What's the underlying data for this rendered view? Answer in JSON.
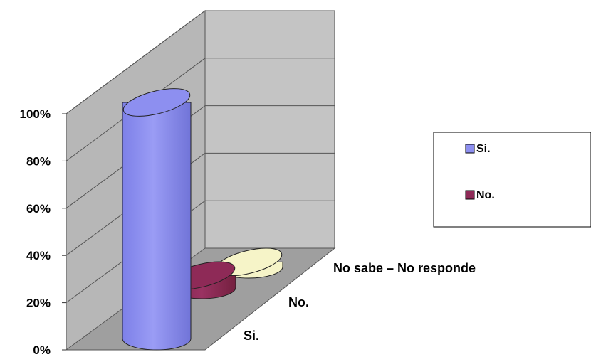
{
  "chart_data": {
    "type": "bar",
    "style": "3d-cylinder",
    "categories": [
      "Si.",
      "No.",
      "No sabe – No responde"
    ],
    "values": [
      100,
      5,
      2
    ],
    "y_tick_labels": [
      "0%",
      "20%",
      "40%",
      "60%",
      "80%",
      "100%"
    ],
    "ylim": [
      0,
      100
    ],
    "grid": true,
    "legend": {
      "placement": "right",
      "entries": [
        "Si.",
        "No."
      ]
    },
    "colors": {
      "Si.": "#8d8ff0",
      "No.": "#8e2a57",
      "No sabe – No responde": "#f6f4c8"
    }
  }
}
